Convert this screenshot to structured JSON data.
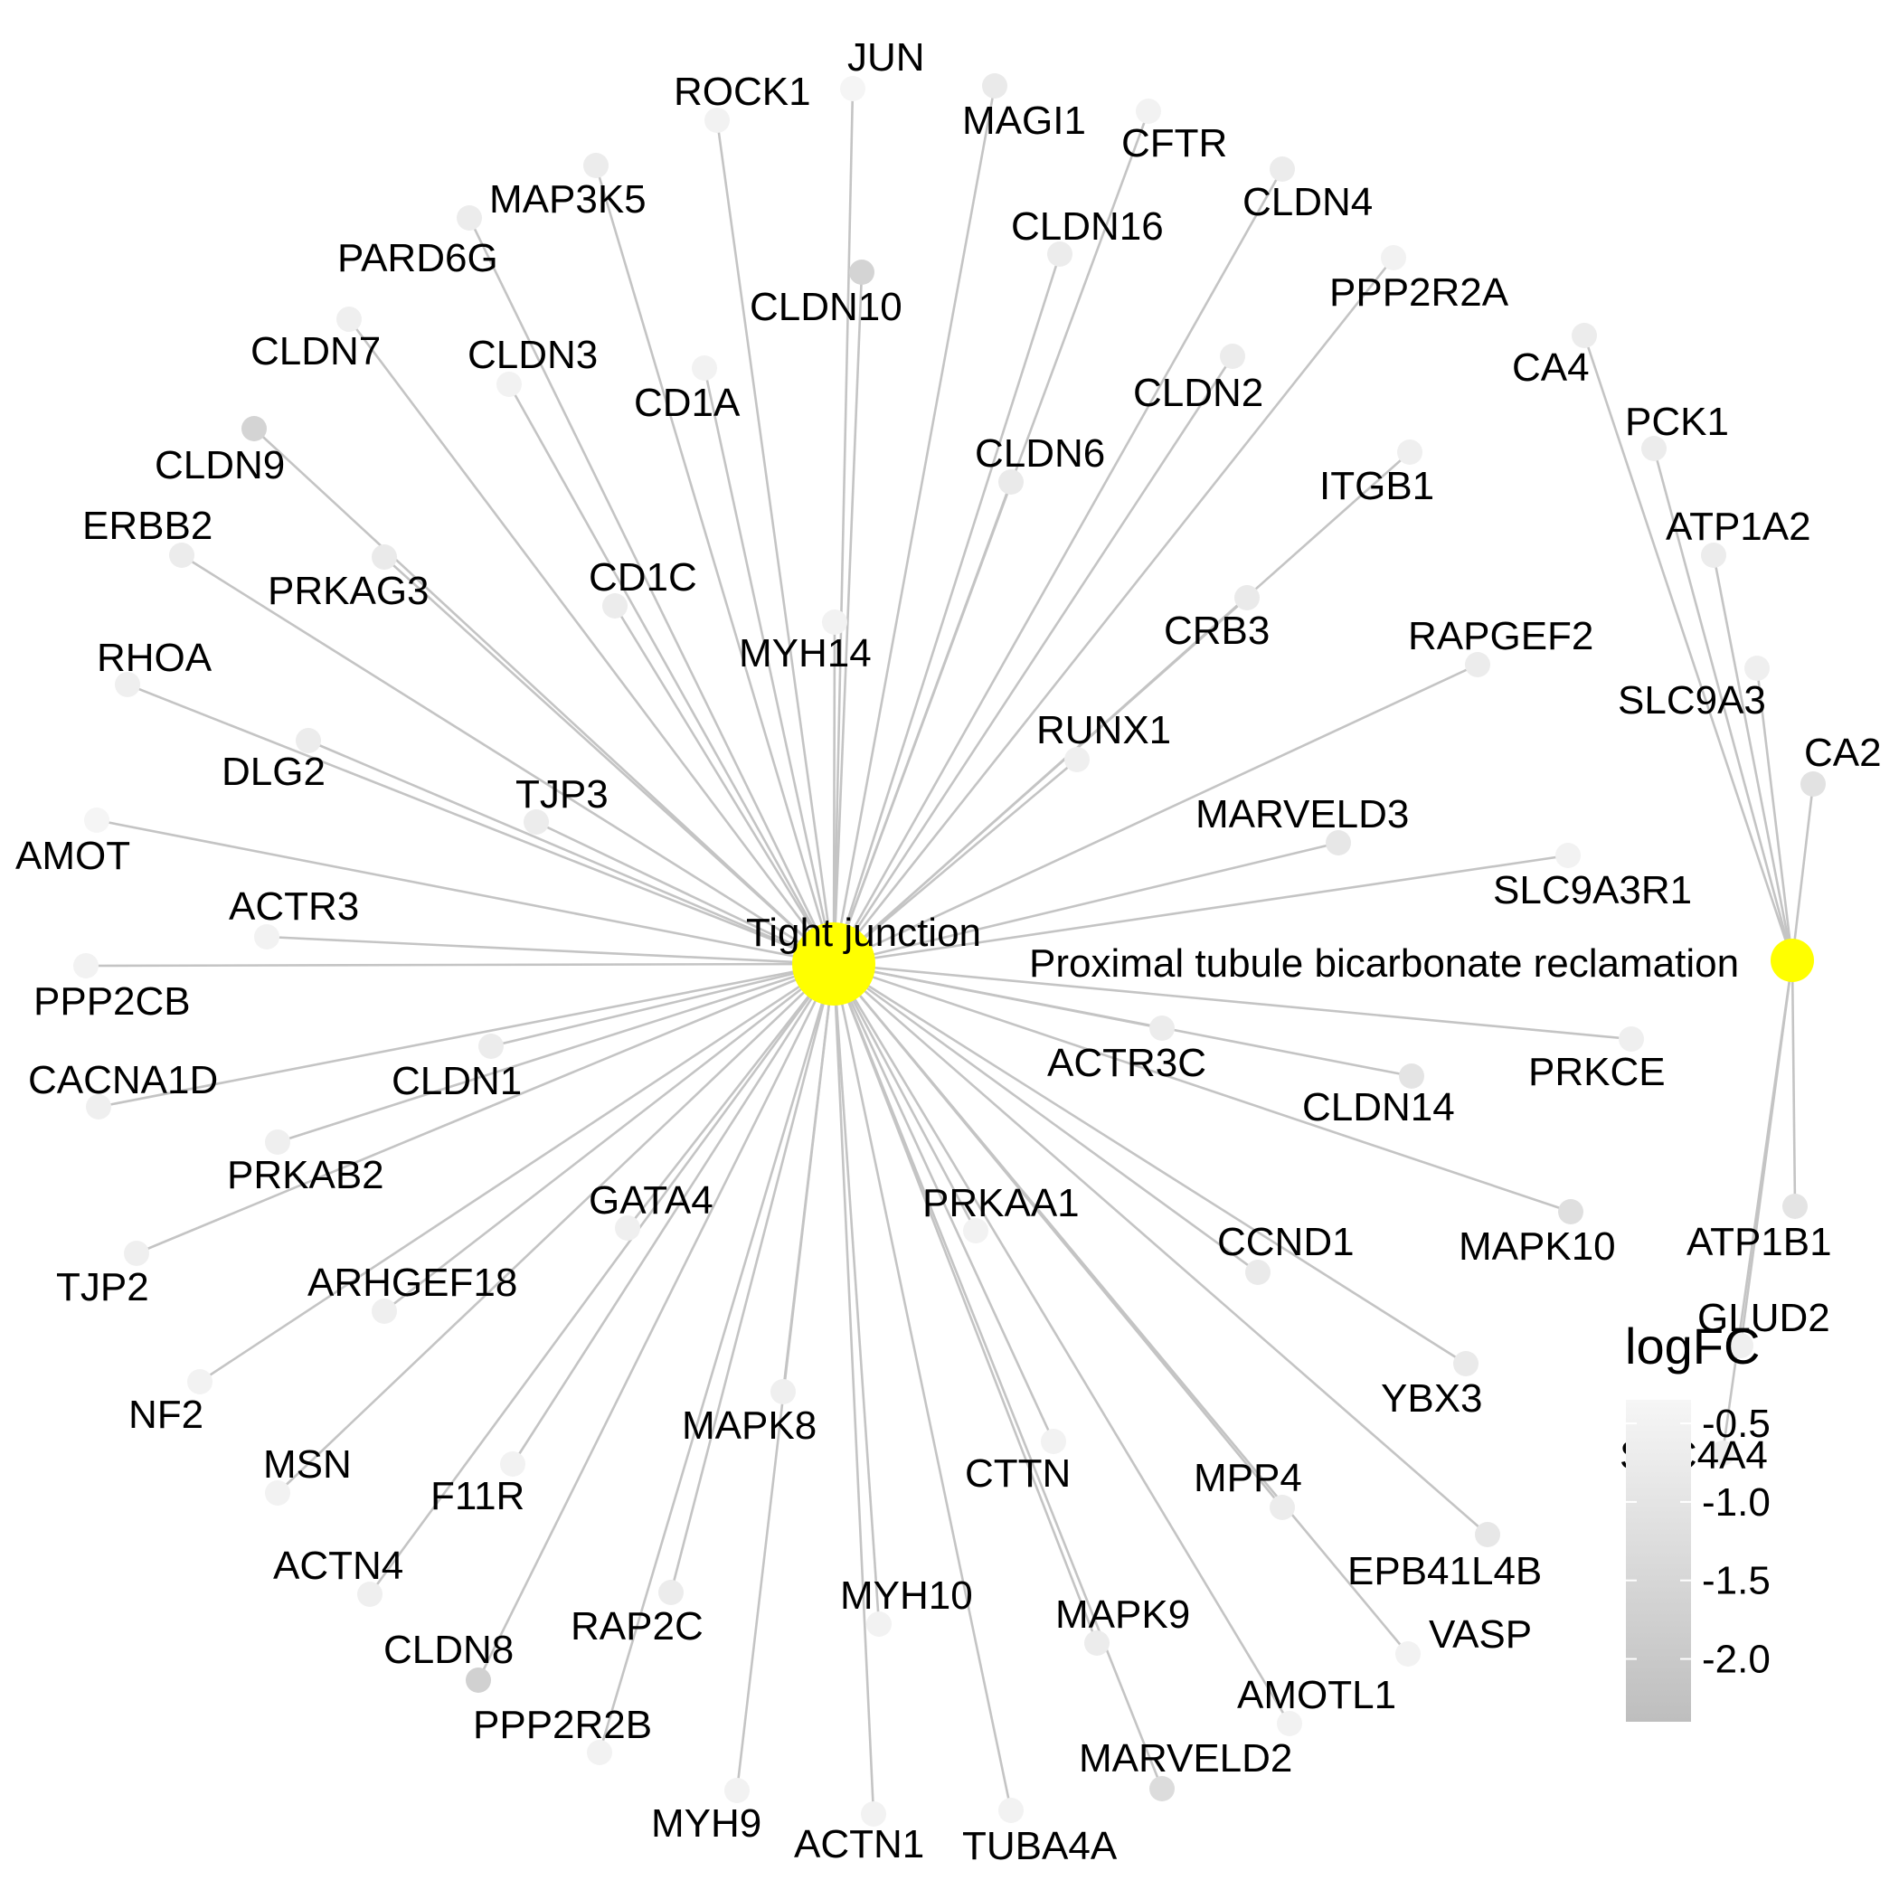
{
  "hubs": {
    "tight": {
      "label": "Tight junction",
      "color": "#FFFF00"
    },
    "prox": {
      "label": "Proximal tubule bicarbonate reclamation",
      "color": "#FFFF00"
    }
  },
  "genes": [
    {
      "name": "ROCK1",
      "logfc": -0.5,
      "hubs": [
        "tight"
      ]
    },
    {
      "name": "JUN",
      "logfc": -0.4,
      "hubs": [
        "tight"
      ]
    },
    {
      "name": "MAGI1",
      "logfc": -0.8,
      "hubs": [
        "tight"
      ]
    },
    {
      "name": "CFTR",
      "logfc": -0.5,
      "hubs": [
        "tight"
      ]
    },
    {
      "name": "CLDN4",
      "logfc": -0.7,
      "hubs": [
        "tight"
      ]
    },
    {
      "name": "MAP3K5",
      "logfc": -0.7,
      "hubs": [
        "tight"
      ]
    },
    {
      "name": "CLDN16",
      "logfc": -0.7,
      "hubs": [
        "tight"
      ]
    },
    {
      "name": "PARD6G",
      "logfc": -0.7,
      "hubs": [
        "tight"
      ]
    },
    {
      "name": "CLDN10",
      "logfc": -1.6,
      "hubs": [
        "tight"
      ]
    },
    {
      "name": "PPP2R2A",
      "logfc": -0.5,
      "hubs": [
        "tight"
      ]
    },
    {
      "name": "CLDN7",
      "logfc": -0.6,
      "hubs": [
        "tight"
      ]
    },
    {
      "name": "CLDN3",
      "logfc": -0.5,
      "hubs": [
        "tight"
      ]
    },
    {
      "name": "CD1A",
      "logfc": -0.5,
      "hubs": [
        "tight"
      ]
    },
    {
      "name": "CA4",
      "logfc": -0.7,
      "hubs": [
        "prox"
      ]
    },
    {
      "name": "CLDN2",
      "logfc": -0.7,
      "hubs": [
        "tight"
      ]
    },
    {
      "name": "PCK1",
      "logfc": -0.7,
      "hubs": [
        "prox"
      ]
    },
    {
      "name": "CLDN9",
      "logfc": -1.6,
      "hubs": [
        "tight"
      ]
    },
    {
      "name": "CLDN6",
      "logfc": -0.8,
      "hubs": [
        "tight"
      ]
    },
    {
      "name": "ITGB1",
      "logfc": -0.6,
      "hubs": [
        "tight"
      ]
    },
    {
      "name": "ATP1A2",
      "logfc": -0.7,
      "hubs": [
        "prox"
      ]
    },
    {
      "name": "ERBB2",
      "logfc": -0.7,
      "hubs": [
        "tight"
      ]
    },
    {
      "name": "PRKAG3",
      "logfc": -0.8,
      "hubs": [
        "tight"
      ]
    },
    {
      "name": "CD1C",
      "logfc": -0.7,
      "hubs": [
        "tight"
      ]
    },
    {
      "name": "MYH14",
      "logfc": -0.5,
      "hubs": [
        "tight"
      ]
    },
    {
      "name": "CRB3",
      "logfc": -0.8,
      "hubs": [
        "tight"
      ]
    },
    {
      "name": "RAPGEF2",
      "logfc": -0.7,
      "hubs": [
        "tight"
      ]
    },
    {
      "name": "SLC9A3",
      "logfc": -0.6,
      "hubs": [
        "prox"
      ]
    },
    {
      "name": "RHOA",
      "logfc": -0.6,
      "hubs": [
        "tight"
      ]
    },
    {
      "name": "CA2",
      "logfc": -1.1,
      "hubs": [
        "prox"
      ]
    },
    {
      "name": "DLG2",
      "logfc": -0.7,
      "hubs": [
        "tight"
      ]
    },
    {
      "name": "RUNX1",
      "logfc": -0.6,
      "hubs": [
        "tight"
      ]
    },
    {
      "name": "TJP3",
      "logfc": -0.7,
      "hubs": [
        "tight"
      ]
    },
    {
      "name": "MARVELD3",
      "logfc": -0.9,
      "hubs": [
        "tight"
      ]
    },
    {
      "name": "AMOT",
      "logfc": -0.4,
      "hubs": [
        "tight"
      ]
    },
    {
      "name": "SLC9A3R1",
      "logfc": -0.5,
      "hubs": [
        "tight"
      ]
    },
    {
      "name": "ACTR3",
      "logfc": -0.5,
      "hubs": [
        "tight"
      ]
    },
    {
      "name": "PPP2CB",
      "logfc": -0.5,
      "hubs": [
        "tight"
      ]
    },
    {
      "name": "CACNA1D",
      "logfc": -0.6,
      "hubs": [
        "tight"
      ]
    },
    {
      "name": "CLDN1",
      "logfc": -0.7,
      "hubs": [
        "tight"
      ]
    },
    {
      "name": "ACTR3C",
      "logfc": -0.7,
      "hubs": [
        "tight"
      ]
    },
    {
      "name": "CLDN14",
      "logfc": -1.0,
      "hubs": [
        "tight"
      ]
    },
    {
      "name": "PRKCE",
      "logfc": -0.6,
      "hubs": [
        "tight"
      ]
    },
    {
      "name": "PRKAB2",
      "logfc": -0.6,
      "hubs": [
        "tight"
      ]
    },
    {
      "name": "GATA4",
      "logfc": -0.6,
      "hubs": [
        "tight"
      ]
    },
    {
      "name": "PRKAA1",
      "logfc": -0.5,
      "hubs": [
        "tight"
      ]
    },
    {
      "name": "CCND1",
      "logfc": -0.8,
      "hubs": [
        "tight"
      ]
    },
    {
      "name": "MAPK10",
      "logfc": -1.2,
      "hubs": [
        "tight"
      ]
    },
    {
      "name": "ATP1B1",
      "logfc": -1.0,
      "hubs": [
        "prox"
      ]
    },
    {
      "name": "TJP2",
      "logfc": -0.6,
      "hubs": [
        "tight"
      ]
    },
    {
      "name": "ARHGEF18",
      "logfc": -0.6,
      "hubs": [
        "tight"
      ]
    },
    {
      "name": "GLUD2",
      "logfc": -0.6,
      "hubs": [
        "prox"
      ]
    },
    {
      "name": "NF2",
      "logfc": -0.5,
      "hubs": [
        "tight"
      ]
    },
    {
      "name": "YBX3",
      "logfc": -0.8,
      "hubs": [
        "tight"
      ]
    },
    {
      "name": "MAPK8",
      "logfc": -0.6,
      "hubs": [
        "tight"
      ]
    },
    {
      "name": "SLC4A4",
      "logfc": -0.6,
      "hubs": [
        "prox"
      ]
    },
    {
      "name": "MSN",
      "logfc": -0.5,
      "hubs": [
        "tight"
      ]
    },
    {
      "name": "F11R",
      "logfc": -0.5,
      "hubs": [
        "tight"
      ]
    },
    {
      "name": "CTTN",
      "logfc": -0.5,
      "hubs": [
        "tight"
      ]
    },
    {
      "name": "MPP4",
      "logfc": -0.7,
      "hubs": [
        "tight"
      ]
    },
    {
      "name": "EPB41L4B",
      "logfc": -0.9,
      "hubs": [
        "tight"
      ]
    },
    {
      "name": "ACTN4",
      "logfc": -0.6,
      "hubs": [
        "tight"
      ]
    },
    {
      "name": "RAP2C",
      "logfc": -0.7,
      "hubs": [
        "tight"
      ]
    },
    {
      "name": "MYH10",
      "logfc": -0.5,
      "hubs": [
        "tight"
      ]
    },
    {
      "name": "MAPK9",
      "logfc": -0.7,
      "hubs": [
        "tight"
      ]
    },
    {
      "name": "VASP",
      "logfc": -0.5,
      "hubs": [
        "tight"
      ]
    },
    {
      "name": "CLDN8",
      "logfc": -1.7,
      "hubs": [
        "tight"
      ]
    },
    {
      "name": "AMOTL1",
      "logfc": -0.5,
      "hubs": [
        "tight"
      ]
    },
    {
      "name": "PPP2R2B",
      "logfc": -0.5,
      "hubs": [
        "tight"
      ]
    },
    {
      "name": "MARVELD2",
      "logfc": -1.3,
      "hubs": [
        "tight"
      ]
    },
    {
      "name": "MYH9",
      "logfc": -0.5,
      "hubs": [
        "tight"
      ]
    },
    {
      "name": "ACTN1",
      "logfc": -0.5,
      "hubs": [
        "tight"
      ]
    },
    {
      "name": "TUBA4A",
      "logfc": -0.5,
      "hubs": [
        "tight"
      ]
    }
  ],
  "legend": {
    "title": "logFC",
    "ticks": [
      -0.5,
      -1.0,
      -1.5,
      -2.0
    ],
    "tick_labels": [
      "-0.5",
      "-1.0",
      "-1.5",
      "-2.0"
    ],
    "range": [
      -2.4,
      -0.35
    ],
    "color_high": "#F6F6F6",
    "color_low": "#BEBEBE"
  },
  "colors": {
    "edge": "#C4C4C4",
    "hub": "#FFFF00",
    "background": "#FFFFFF"
  }
}
